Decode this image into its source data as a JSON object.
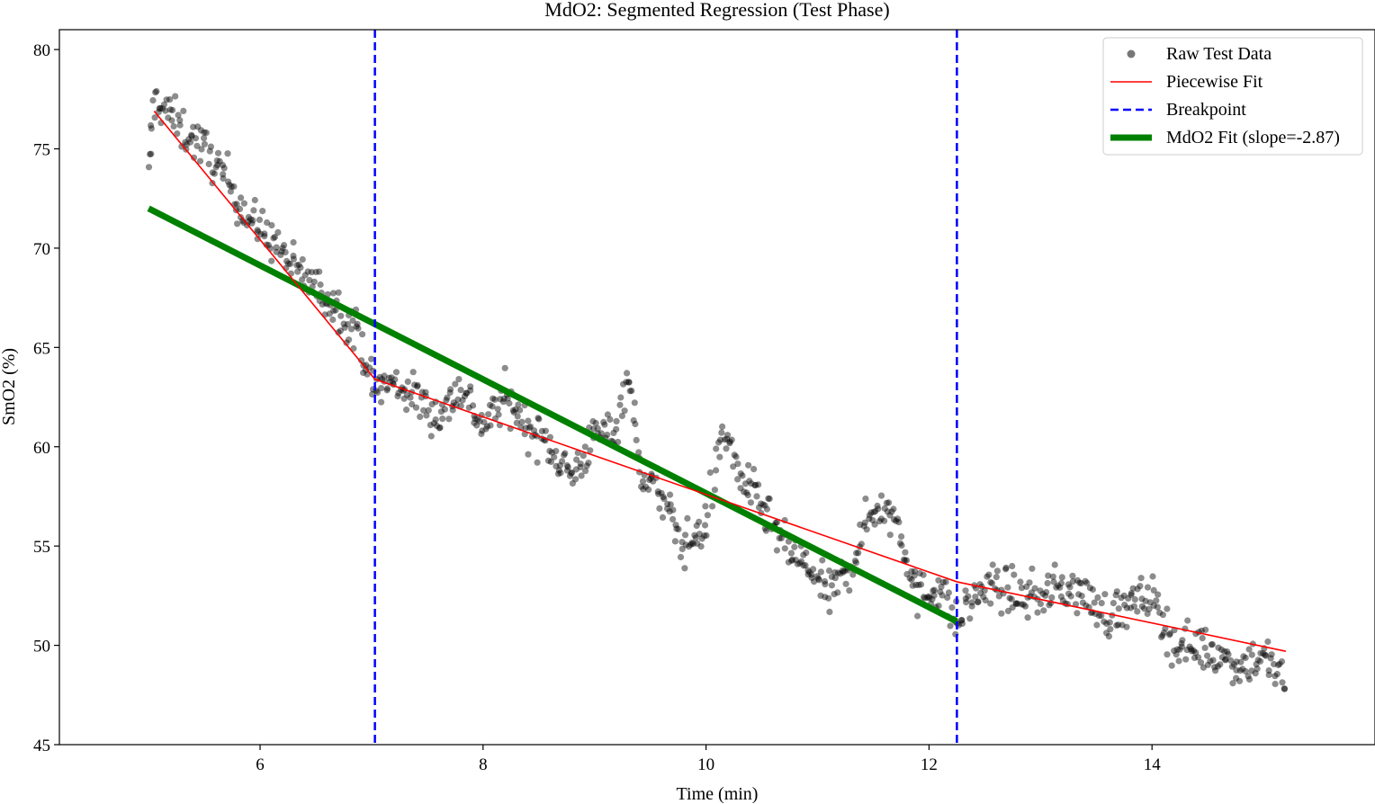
{
  "chart_data": {
    "type": "scatter",
    "title": "MdO2: Segmented Regression (Test Phase)",
    "xlabel": "Time (min)",
    "ylabel": "SmO2 (%)",
    "xlim": [
      4.2,
      16.0
    ],
    "ylim": [
      45.0,
      81.0
    ],
    "xticks": [
      6,
      8,
      10,
      12,
      14
    ],
    "yticks": [
      45,
      50,
      55,
      60,
      65,
      70,
      75,
      80
    ],
    "grid": false,
    "legend_position": "top-right",
    "colors": {
      "raw": "#000000",
      "piecewise": "#ff0000",
      "breakpoint": "#0000ff",
      "mdo2_fit": "#008000"
    },
    "series": [
      {
        "name": "Raw Test Data",
        "kind": "scatter",
        "trace": [
          [
            5.0,
            73.5
          ],
          [
            5.05,
            77.5
          ],
          [
            5.15,
            77.0
          ],
          [
            5.3,
            76.0
          ],
          [
            5.5,
            75.0
          ],
          [
            5.7,
            73.5
          ],
          [
            5.9,
            71.5
          ],
          [
            6.1,
            70.5
          ],
          [
            6.3,
            69.0
          ],
          [
            6.5,
            68.0
          ],
          [
            6.7,
            67.0
          ],
          [
            6.9,
            65.5
          ],
          [
            7.0,
            63.0
          ],
          [
            7.2,
            63.2
          ],
          [
            7.4,
            62.5
          ],
          [
            7.6,
            61.5
          ],
          [
            7.8,
            63.0
          ],
          [
            8.0,
            61.0
          ],
          [
            8.2,
            62.5
          ],
          [
            8.4,
            61.0
          ],
          [
            8.6,
            60.0
          ],
          [
            8.8,
            58.5
          ],
          [
            9.0,
            60.5
          ],
          [
            9.2,
            61.0
          ],
          [
            9.3,
            64.0
          ],
          [
            9.4,
            59.0
          ],
          [
            9.6,
            57.5
          ],
          [
            9.8,
            55.0
          ],
          [
            10.0,
            56.0
          ],
          [
            10.15,
            61.0
          ],
          [
            10.3,
            58.5
          ],
          [
            10.5,
            57.0
          ],
          [
            10.7,
            55.0
          ],
          [
            10.9,
            54.0
          ],
          [
            11.1,
            52.5
          ],
          [
            11.3,
            54.0
          ],
          [
            11.5,
            57.0
          ],
          [
            11.7,
            56.5
          ],
          [
            11.9,
            52.5
          ],
          [
            12.1,
            53.0
          ],
          [
            12.25,
            51.0
          ],
          [
            12.4,
            52.5
          ],
          [
            12.6,
            53.0
          ],
          [
            12.8,
            52.5
          ],
          [
            13.0,
            52.5
          ],
          [
            13.2,
            53.0
          ],
          [
            13.4,
            52.5
          ],
          [
            13.6,
            51.5
          ],
          [
            13.8,
            52.0
          ],
          [
            14.0,
            52.5
          ],
          [
            14.2,
            50.0
          ],
          [
            14.4,
            50.0
          ],
          [
            14.6,
            49.5
          ],
          [
            14.8,
            49.0
          ],
          [
            15.0,
            49.5
          ],
          [
            15.2,
            48.0
          ]
        ]
      },
      {
        "name": "Piecewise Fit",
        "kind": "line",
        "x": [
          5.05,
          7.03,
          12.25,
          15.2
        ],
        "y": [
          76.9,
          63.4,
          53.2,
          49.7
        ]
      },
      {
        "name": "Breakpoint",
        "kind": "vline",
        "x": [
          7.03,
          12.25
        ]
      },
      {
        "name": "MdO2 Fit (slope=-2.87)",
        "kind": "line",
        "x": [
          5.0,
          12.25
        ],
        "y": [
          72.0,
          51.2
        ]
      }
    ]
  }
}
